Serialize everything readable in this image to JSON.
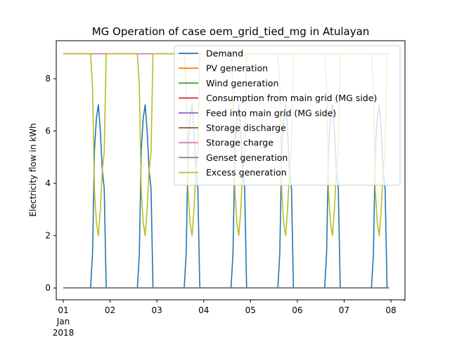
{
  "chart_data": {
    "type": "line",
    "title": "MG Operation of case oem_grid_tied_mg in Atulayan",
    "xlabel": "",
    "ylabel": "Electricity flow in kWh",
    "ylim": [
      -0.45,
      9.45
    ],
    "xlim": [
      -0.15,
      7.3
    ],
    "yticks": [
      0,
      2,
      4,
      6,
      8
    ],
    "xticks": [
      {
        "value": 0,
        "label": "01",
        "sub": [
          "Jan",
          "2018"
        ]
      },
      {
        "value": 1,
        "label": "02"
      },
      {
        "value": 2,
        "label": "03"
      },
      {
        "value": 3,
        "label": "04"
      },
      {
        "value": 4,
        "label": "05"
      },
      {
        "value": 5,
        "label": "06"
      },
      {
        "value": 6,
        "label": "07"
      },
      {
        "value": 7,
        "label": "08"
      }
    ],
    "legend_position": "top-right",
    "x_unit": "days since 2018-01-01 00:00",
    "series": [
      {
        "name": "Demand",
        "color": "#1f77b4",
        "pattern": "demand",
        "constant": null
      },
      {
        "name": "PV generation",
        "color": "#ff7f0e",
        "pattern": "constant",
        "constant": 0
      },
      {
        "name": "Wind generation",
        "color": "#2ca02c",
        "pattern": "constant",
        "constant": 0
      },
      {
        "name": "Consumption from main grid (MG side)",
        "color": "#d62728",
        "pattern": "constant",
        "constant": 8.95
      },
      {
        "name": "Feed into main grid (MG side)",
        "color": "#9467bd",
        "pattern": "constant",
        "constant": 0
      },
      {
        "name": "Storage discharge",
        "color": "#8c564b",
        "pattern": "constant",
        "constant": 0
      },
      {
        "name": "Storage charge",
        "color": "#e377c2",
        "pattern": "constant",
        "constant": 8.95
      },
      {
        "name": "Genset generation",
        "color": "#7f7f7f",
        "pattern": "constant",
        "constant": 0
      },
      {
        "name": "Excess generation",
        "color": "#bcbd22",
        "pattern": "excess",
        "constant": null
      }
    ],
    "daily_profile": {
      "hours": [
        0,
        14,
        15,
        16,
        17,
        18,
        19,
        20,
        21,
        22,
        23
      ],
      "demand": [
        0,
        0,
        1.3,
        5.3,
        6.5,
        7.0,
        6.0,
        4.5,
        3.8,
        0,
        0
      ],
      "excess": [
        8.95,
        8.95,
        7.7,
        3.7,
        2.5,
        2.0,
        3.0,
        4.5,
        5.2,
        8.95,
        8.95
      ]
    },
    "days": 7
  }
}
